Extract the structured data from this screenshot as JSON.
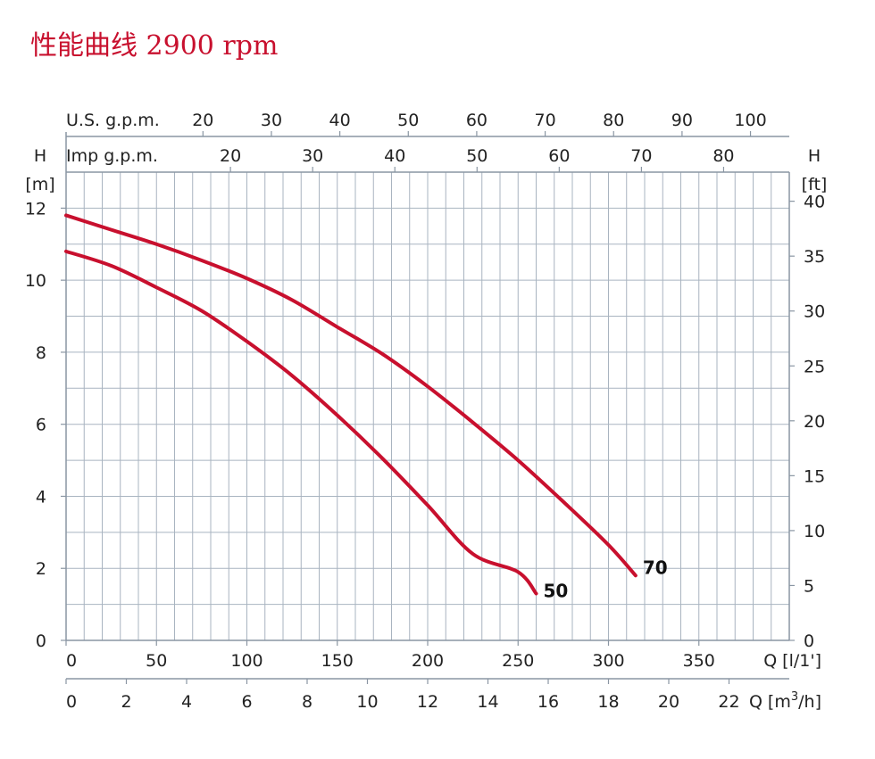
{
  "title": "性能曲线 2900 rpm",
  "colors": {
    "curve": "#c8102e",
    "grid": "#a9b4c0",
    "title": "#c8102e"
  },
  "chart_data": {
    "type": "line",
    "title": "性能曲线 2900 rpm",
    "grid": true,
    "x_axis_primary": {
      "label": "Q [l/1']",
      "range": [
        0,
        400
      ],
      "ticks": [
        0,
        50,
        100,
        150,
        200,
        250,
        300,
        350
      ]
    },
    "x_axis_m3h": {
      "label_prefix": "Q [m",
      "label_sup": "3",
      "label_suffix": "/h]",
      "range": [
        0,
        24
      ],
      "ticks": [
        0,
        2,
        4,
        6,
        8,
        10,
        12,
        14,
        16,
        18,
        20,
        22
      ]
    },
    "x_axis_us_gpm": {
      "label": "U.S. g.p.m.",
      "ticks": [
        20,
        30,
        40,
        50,
        60,
        70,
        80,
        90,
        100
      ]
    },
    "x_axis_imp_gpm": {
      "label": "Imp g.p.m.",
      "ticks": [
        20,
        30,
        40,
        50,
        60,
        70,
        80
      ]
    },
    "y_axis_left": {
      "label_top": "H",
      "label_unit": "[m]",
      "range": [
        0,
        13
      ],
      "ticks": [
        0,
        2,
        4,
        6,
        8,
        10,
        12
      ]
    },
    "y_axis_right": {
      "label_top": "H",
      "label_unit": "[ft]",
      "range": [
        0,
        42.65
      ],
      "ticks": [
        0,
        5,
        10,
        15,
        20,
        25,
        30,
        35,
        40
      ]
    },
    "series": [
      {
        "name": "70",
        "x": [
          0,
          25,
          50,
          75,
          100,
          125,
          150,
          175,
          200,
          225,
          250,
          275,
          300,
          315
        ],
        "y": [
          11.8,
          11.4,
          11.0,
          10.55,
          10.05,
          9.45,
          8.7,
          7.95,
          7.05,
          6.05,
          5.0,
          3.85,
          2.65,
          1.8
        ]
      },
      {
        "name": "50",
        "x": [
          0,
          25,
          50,
          75,
          100,
          125,
          150,
          175,
          200,
          225,
          250,
          260
        ],
        "y": [
          10.8,
          10.4,
          9.8,
          9.15,
          8.3,
          7.35,
          6.25,
          5.05,
          3.75,
          2.4,
          1.9,
          1.3
        ]
      }
    ]
  }
}
